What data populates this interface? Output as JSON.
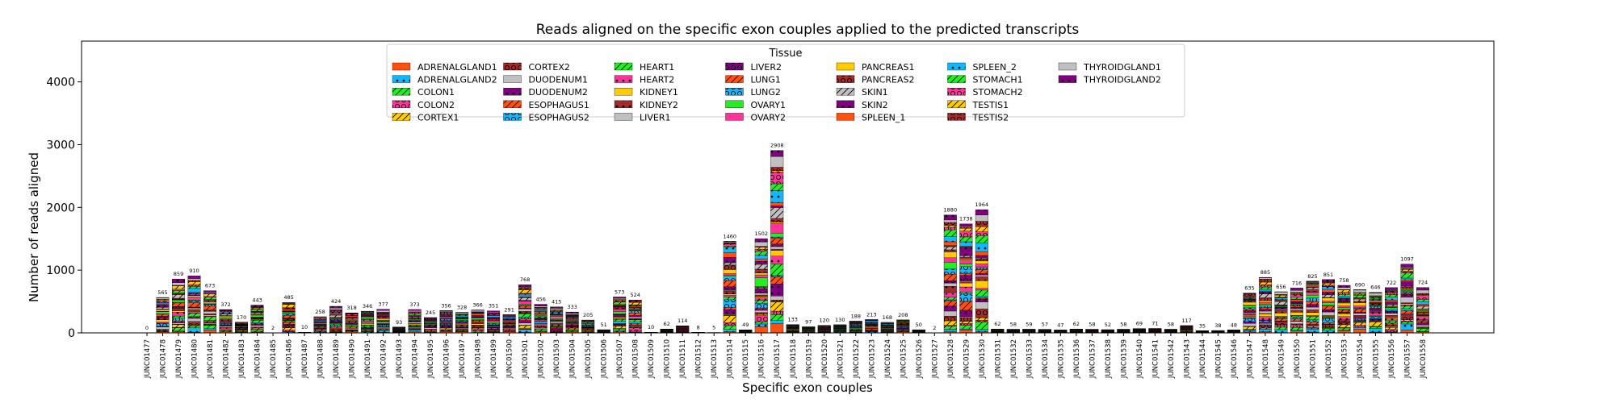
{
  "chart_data": {
    "type": "bar",
    "stacked": true,
    "title": "Reads aligned on the specific exon couples applied to the predicted transcripts",
    "xlabel": "Specific exon couples",
    "ylabel": "Number of reads aligned",
    "ylim": [
      0,
      4650
    ],
    "yticks": [
      0,
      1000,
      2000,
      3000,
      4000
    ],
    "grid": false,
    "legend": {
      "title": "Tissue",
      "placement": "top-center",
      "columns": 7
    },
    "categories": [
      "JUNC01477",
      "JUNC01478",
      "JUNC01479",
      "JUNC01480",
      "JUNC01481",
      "JUNC01482",
      "JUNC01483",
      "JUNC01484",
      "JUNC01485",
      "JUNC01486",
      "JUNC01487",
      "JUNC01488",
      "JUNC01489",
      "JUNC01490",
      "JUNC01491",
      "JUNC01492",
      "JUNC01493",
      "JUNC01494",
      "JUNC01495",
      "JUNC01496",
      "JUNC01497",
      "JUNC01498",
      "JUNC01499",
      "JUNC01500",
      "JUNC01501",
      "JUNC01502",
      "JUNC01503",
      "JUNC01504",
      "JUNC01505",
      "JUNC01506",
      "JUNC01507",
      "JUNC01508",
      "JUNC01509",
      "JUNC01510",
      "JUNC01511",
      "JUNC01512",
      "JUNC01513",
      "JUNC01514",
      "JUNC01515",
      "JUNC01516",
      "JUNC01517",
      "JUNC01518",
      "JUNC01519",
      "JUNC01520",
      "JUNC01521",
      "JUNC01522",
      "JUNC01523",
      "JUNC01524",
      "JUNC01525",
      "JUNC01526",
      "JUNC01527",
      "JUNC01528",
      "JUNC01529",
      "JUNC01530",
      "JUNC01531",
      "JUNC01532",
      "JUNC01533",
      "JUNC01534",
      "JUNC01535",
      "JUNC01536",
      "JUNC01537",
      "JUNC01538",
      "JUNC01539",
      "JUNC01540",
      "JUNC01541",
      "JUNC01542",
      "JUNC01543",
      "JUNC01544",
      "JUNC01545",
      "JUNC01546",
      "JUNC01547",
      "JUNC01548",
      "JUNC01549",
      "JUNC01550",
      "JUNC01551",
      "JUNC01552",
      "JUNC01553",
      "JUNC01554",
      "JUNC01555",
      "JUNC01556",
      "JUNC01557",
      "JUNC01558"
    ],
    "totals": [
      0,
      565,
      859,
      910,
      673,
      372,
      170,
      443,
      2,
      485,
      10,
      258,
      424,
      318,
      346,
      377,
      93,
      373,
      245,
      356,
      328,
      366,
      351,
      291,
      768,
      456,
      415,
      333,
      205,
      51,
      573,
      524,
      10,
      62,
      114,
      8,
      5,
      1460,
      49,
      1502,
      2908,
      133,
      97,
      120,
      130,
      188,
      213,
      168,
      208,
      50,
      2,
      1880,
      1738,
      1964,
      62,
      58,
      59,
      57,
      47,
      62,
      58,
      52,
      58,
      69,
      71,
      58,
      117,
      35,
      38,
      48,
      635,
      885,
      656,
      716,
      825,
      851,
      758,
      690,
      646,
      722,
      1097,
      724
    ],
    "tissues": [
      {
        "name": "ADRENALGLAND1",
        "color": "#ff5010",
        "pattern": "none"
      },
      {
        "name": "ADRENALGLAND2",
        "color": "#10b8ff",
        "pattern": "dots"
      },
      {
        "name": "COLON1",
        "color": "#22ee22",
        "pattern": "slash"
      },
      {
        "name": "COLON2",
        "color": "#ff3399",
        "pattern": "circles"
      },
      {
        "name": "CORTEX1",
        "color": "#ffcc00",
        "pattern": "slash"
      },
      {
        "name": "CORTEX2",
        "color": "#a52a2a",
        "pattern": "circles"
      },
      {
        "name": "DUODENUM1",
        "color": "#c0c0c0",
        "pattern": "none"
      },
      {
        "name": "DUODENUM2",
        "color": "#800080",
        "pattern": "dots"
      },
      {
        "name": "ESOPHAGUS1",
        "color": "#ff5010",
        "pattern": "slash"
      },
      {
        "name": "ESOPHAGUS2",
        "color": "#10b8ff",
        "pattern": "circles"
      },
      {
        "name": "HEART1",
        "color": "#22ee22",
        "pattern": "slash"
      },
      {
        "name": "HEART2",
        "color": "#ff3399",
        "pattern": "dots"
      },
      {
        "name": "KIDNEY1",
        "color": "#ffcc00",
        "pattern": "none"
      },
      {
        "name": "KIDNEY2",
        "color": "#a52a2a",
        "pattern": "dots"
      },
      {
        "name": "LIVER1",
        "color": "#c0c0c0",
        "pattern": "none"
      },
      {
        "name": "LIVER2",
        "color": "#800080",
        "pattern": "circles"
      },
      {
        "name": "LUNG1",
        "color": "#ff5010",
        "pattern": "slash"
      },
      {
        "name": "LUNG2",
        "color": "#10b8ff",
        "pattern": "circles"
      },
      {
        "name": "OVARY1",
        "color": "#22ee22",
        "pattern": "none"
      },
      {
        "name": "OVARY2",
        "color": "#ff3399",
        "pattern": "none"
      },
      {
        "name": "PANCREAS1",
        "color": "#ffcc00",
        "pattern": "none"
      },
      {
        "name": "PANCREAS2",
        "color": "#a52a2a",
        "pattern": "circles"
      },
      {
        "name": "SKIN1",
        "color": "#c0c0c0",
        "pattern": "slash"
      },
      {
        "name": "SKIN2",
        "color": "#800080",
        "pattern": "dots"
      },
      {
        "name": "SPLEEN_1",
        "color": "#ff5010",
        "pattern": "none"
      },
      {
        "name": "SPLEEN_2",
        "color": "#10b8ff",
        "pattern": "dots"
      },
      {
        "name": "STOMACH1",
        "color": "#22ee22",
        "pattern": "slash"
      },
      {
        "name": "STOMACH2",
        "color": "#ff3399",
        "pattern": "circles"
      },
      {
        "name": "TESTIS1",
        "color": "#ffcc00",
        "pattern": "slash"
      },
      {
        "name": "TESTIS2",
        "color": "#a52a2a",
        "pattern": "circles"
      },
      {
        "name": "THYROIDGLAND1",
        "color": "#c0c0c0",
        "pattern": "none"
      },
      {
        "name": "THYROIDGLAND2",
        "color": "#800080",
        "pattern": "dots"
      }
    ]
  }
}
